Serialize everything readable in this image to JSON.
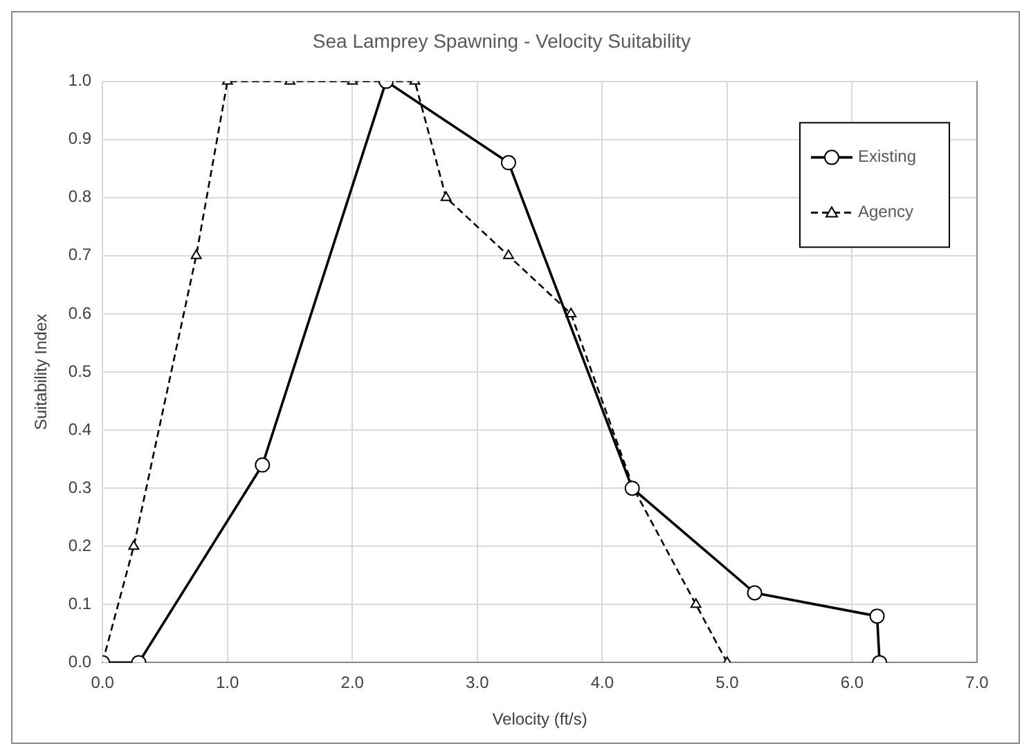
{
  "chart_data": {
    "type": "line",
    "title": "Sea Lamprey Spawning - Velocity Suitability",
    "xlabel": "Velocity (ft/s)",
    "ylabel": "Suitability Index",
    "xlim": [
      0,
      7
    ],
    "xticks": [
      {
        "value": 0,
        "label": "0.0"
      },
      {
        "value": 1,
        "label": "1.0"
      },
      {
        "value": 2,
        "label": "2.0"
      },
      {
        "value": 3,
        "label": "3.0"
      },
      {
        "value": 4,
        "label": "4.0"
      },
      {
        "value": 5,
        "label": "5.0"
      },
      {
        "value": 6,
        "label": "6.0"
      },
      {
        "value": 7,
        "label": "7.0"
      }
    ],
    "ylim": [
      0,
      1
    ],
    "yticks": [
      {
        "value": 0,
        "label": "0.0"
      },
      {
        "value": 0.1,
        "label": "0.1"
      },
      {
        "value": 0.2,
        "label": "0.2"
      },
      {
        "value": 0.3,
        "label": "0.3"
      },
      {
        "value": 0.4,
        "label": "0.4"
      },
      {
        "value": 0.5,
        "label": "0.5"
      },
      {
        "value": 0.6,
        "label": "0.6"
      },
      {
        "value": 0.7,
        "label": "0.7"
      },
      {
        "value": 0.8,
        "label": "0.8"
      },
      {
        "value": 0.9,
        "label": "0.9"
      },
      {
        "value": 1,
        "label": "1.0"
      }
    ],
    "grid": true,
    "legend": "top right",
    "series": [
      {
        "name": "Existing",
        "color": "#000000",
        "marker": "circle",
        "line_style": "solid",
        "x": [
          0,
          0.29,
          1.28,
          2.27,
          3.25,
          4.24,
          5.22,
          6.2,
          6.22
        ],
        "values": [
          0,
          0,
          0.34,
          1.0,
          0.86,
          0.3,
          0.12,
          0.08,
          0
        ]
      },
      {
        "name": "Agency",
        "color": "#000000",
        "marker": "triangle",
        "line_style": "dashed",
        "x": [
          0,
          0.25,
          0.75,
          1.0,
          1.5,
          2.0,
          2.5,
          2.75,
          3.25,
          3.75,
          4.25,
          4.75,
          5.0
        ],
        "values": [
          0,
          0.2,
          0.7,
          1.0,
          1.0,
          1.0,
          1.0,
          0.8,
          0.7,
          0.6,
          0.3,
          0.1,
          0
        ]
      }
    ]
  }
}
